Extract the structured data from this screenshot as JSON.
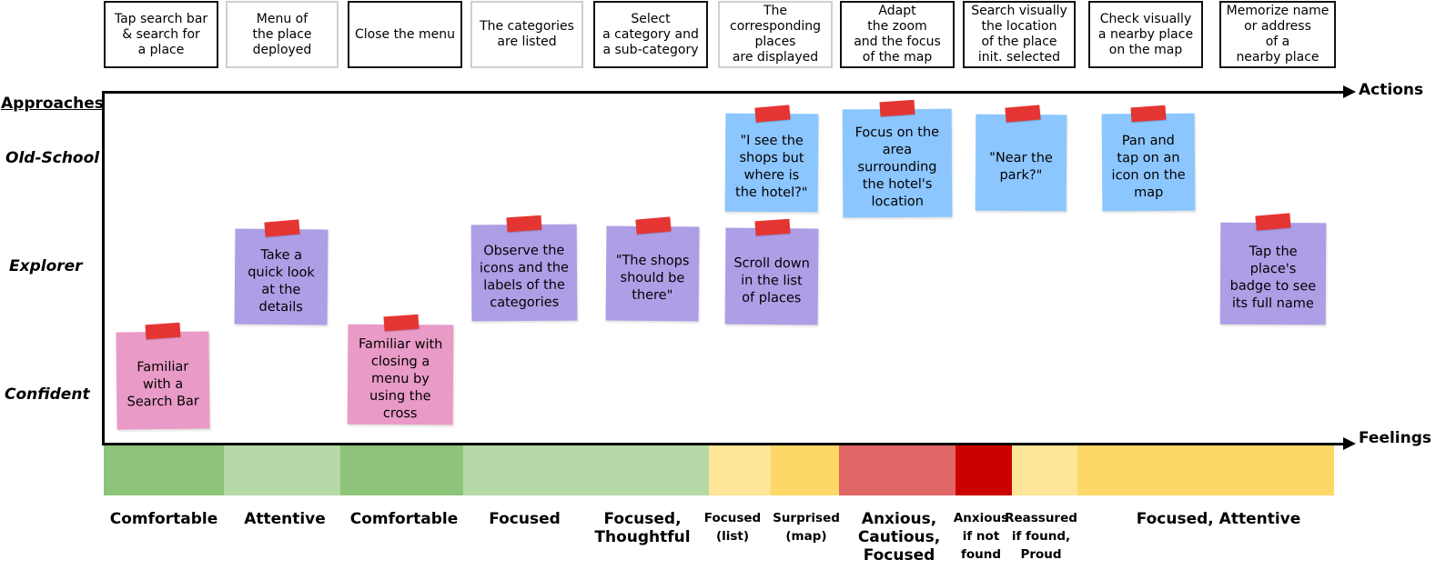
{
  "axes": {
    "approaches": "Approaches",
    "actions": "Actions",
    "feelings": "Feelings"
  },
  "rows": {
    "old_school": "Old-School",
    "explorer": "Explorer",
    "confident": "Confident"
  },
  "actions": [
    "Tap search bar\n& search for\na place",
    "Menu of\nthe place\ndeployed",
    "Close the menu",
    "The categories\nare listed",
    "Select\na category and\na sub-category",
    "The\ncorresponding\nplaces\nare displayed",
    "Adapt\nthe zoom\nand the focus\nof the map",
    "Search visually\nthe location\nof the place\ninit. selected",
    "Check visually\na nearby place\non the map",
    "Memorize name\nor address\nof a\nnearby place"
  ],
  "notes": {
    "familiar_search_bar": "Familiar\nwith a\nSearch Bar",
    "quick_look": "Take a\nquick look\nat the\ndetails",
    "familiar_closing_menu": "Familiar with\nclosing a\nmenu by\nusing the\ncross",
    "observe_icons": "Observe the\nicons and the\nlabels of the\ncategories",
    "shops_should_be_there": "\"The shops\nshould be\nthere\"",
    "see_shops_where_hotel": "\"I see the\nshops but\nwhere is\nthe hotel?\"",
    "scroll_down_list": "Scroll down\nin the list\nof places",
    "focus_on_area": "Focus on the\narea\nsurrounding\nthe hotel's\nlocation",
    "near_the_park": "\"Near the\npark?\"",
    "pan_and_tap": "Pan and\ntap on an\nicon on the\nmap",
    "tap_badge": "Tap the\nplace's\nbadge to see\nits full name"
  },
  "feelings": [
    {
      "label": "Comfortable",
      "color": "#8ec47a"
    },
    {
      "label": "Attentive",
      "color": "#b5d9a7"
    },
    {
      "label": "Comfortable",
      "color": "#8ec47a"
    },
    {
      "label": "Focused",
      "color": "#b5d9a7"
    },
    {
      "label": "Focused,\nThoughtful",
      "color": "#b5d9a7"
    },
    {
      "label": "Focused\n(list)",
      "color": "#fee59a"
    },
    {
      "label": "Surprised\n(map)",
      "color": "#fdd866"
    },
    {
      "label": "Anxious,\nCautious,\nFocused",
      "color": "#e06666"
    },
    {
      "label": "Anxious\nif not\nfound",
      "color": "#cc0000"
    },
    {
      "label": "Reassured\nif found,\nProud",
      "color": "#fee59a"
    },
    {
      "label": "Focused, Attentive",
      "color": "#fdd866"
    }
  ],
  "colors": {
    "note_blue": "#8cc6ff",
    "note_purple": "#ae9ee6",
    "note_pink": "#e99ac6",
    "tape_red": "#e53532"
  }
}
